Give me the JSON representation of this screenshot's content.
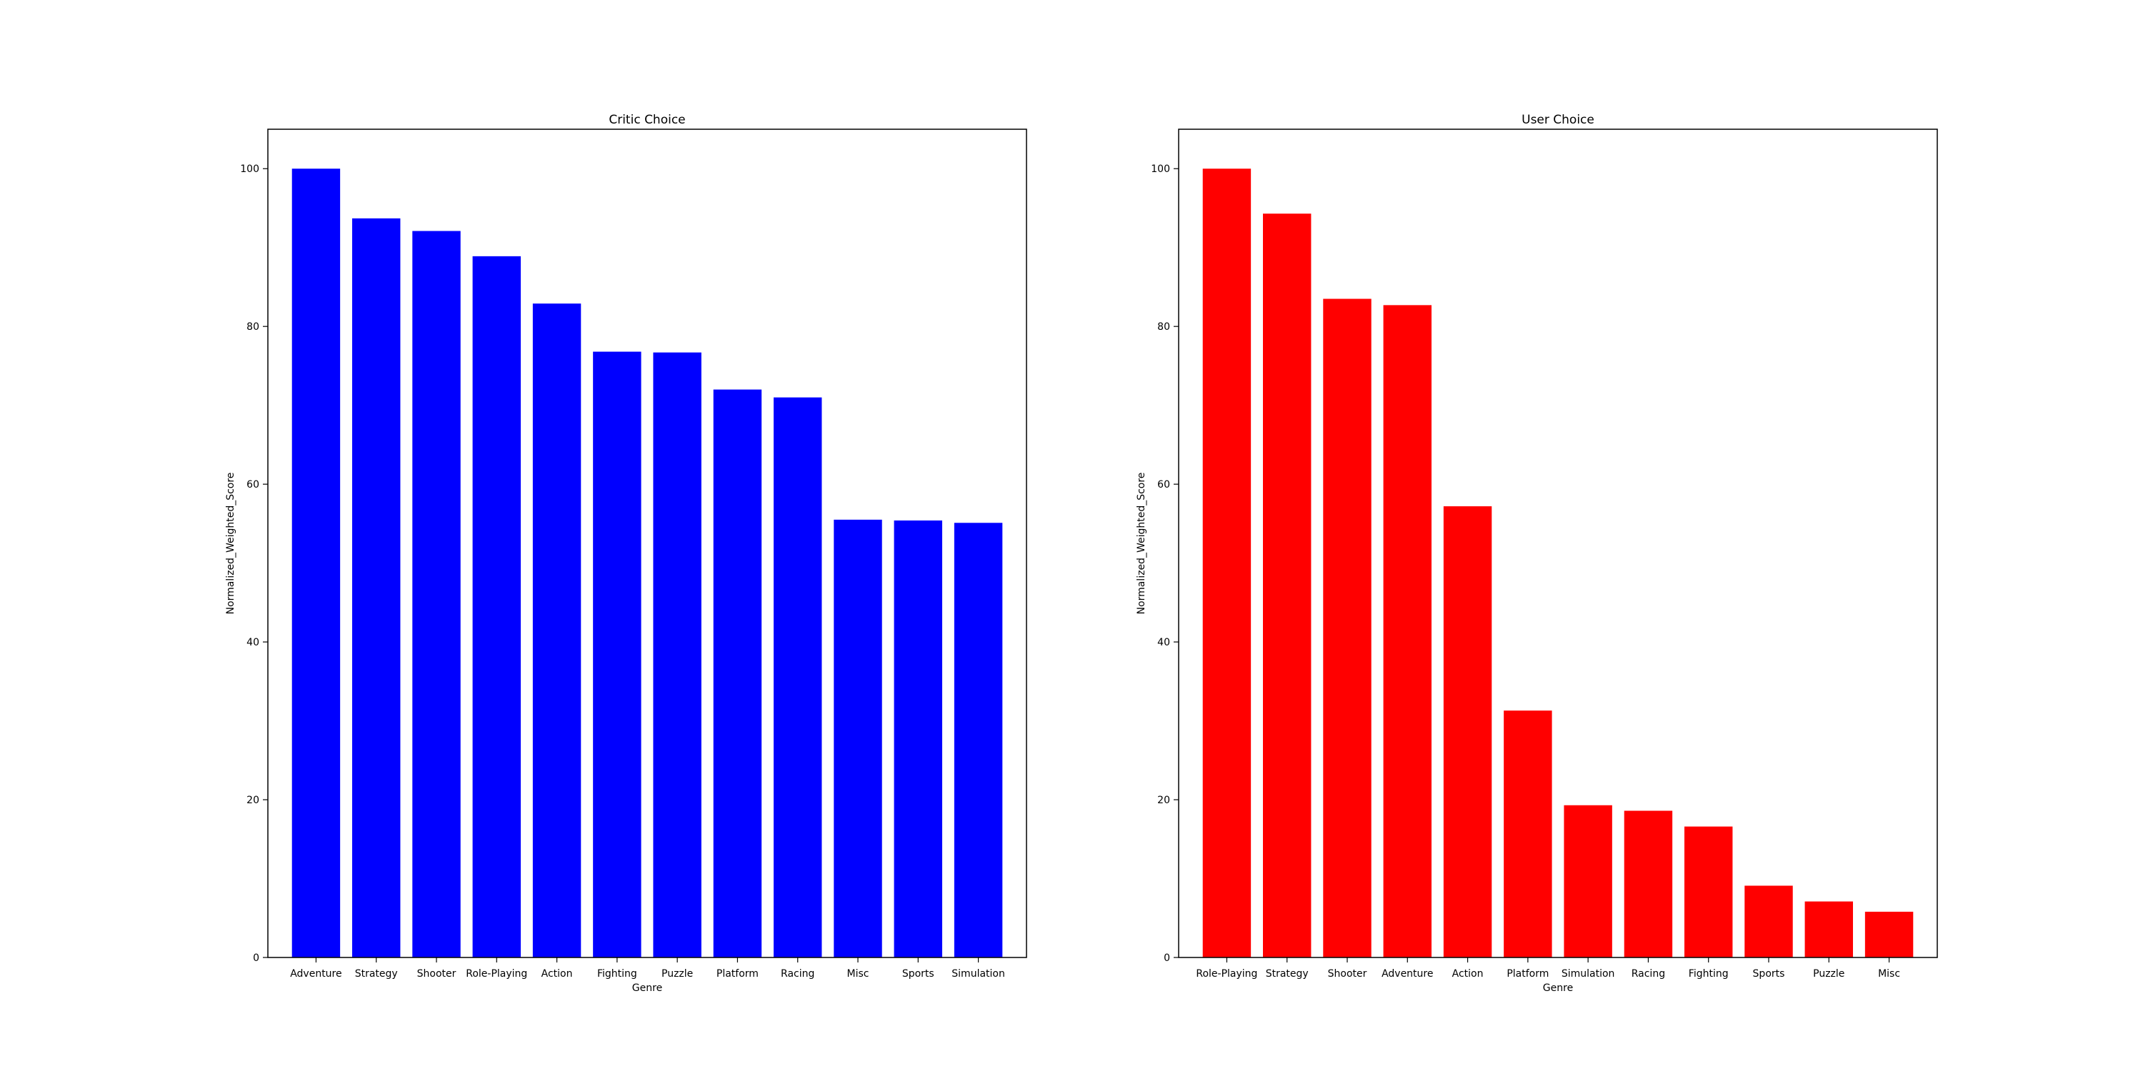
{
  "chart_data": [
    {
      "type": "bar",
      "title": "Critic Choice",
      "xlabel": "Genre",
      "ylabel": "Normalized_Weighted_Score",
      "categories": [
        "Adventure",
        "Strategy",
        "Shooter",
        "Role-Playing",
        "Action",
        "Fighting",
        "Puzzle",
        "Platform",
        "Racing",
        "Misc",
        "Sports",
        "Simulation"
      ],
      "values": [
        100,
        93.7,
        92.1,
        88.9,
        82.9,
        76.8,
        76.7,
        72.0,
        71.0,
        55.5,
        55.4,
        55.1
      ],
      "ylim": [
        0,
        105
      ],
      "yticks": [
        0,
        20,
        40,
        60,
        80,
        100
      ],
      "color": "#0000ff",
      "grid": false
    },
    {
      "type": "bar",
      "title": "User Choice",
      "xlabel": "Genre",
      "ylabel": "Normalized_Weighted_Score",
      "categories": [
        "Role-Playing",
        "Strategy",
        "Shooter",
        "Adventure",
        "Action",
        "Platform",
        "Simulation",
        "Racing",
        "Fighting",
        "Sports",
        "Puzzle",
        "Misc"
      ],
      "values": [
        100,
        94.3,
        83.5,
        82.7,
        57.2,
        31.3,
        19.3,
        18.6,
        16.6,
        9.1,
        7.1,
        5.8
      ],
      "ylim": [
        0,
        105
      ],
      "yticks": [
        0,
        20,
        40,
        60,
        80,
        100
      ],
      "color": "#ff0000",
      "grid": false
    }
  ]
}
